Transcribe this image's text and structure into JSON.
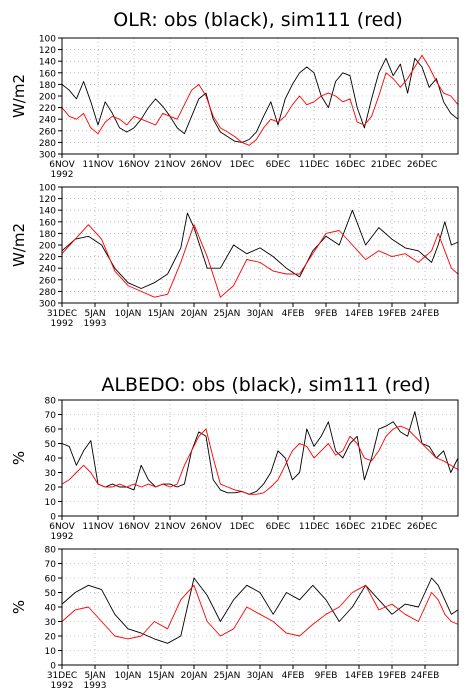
{
  "titles": {
    "olr": "OLR: obs (black), sim111 (red)",
    "albedo": "ALBEDO: obs (black), sim111 (red)"
  },
  "colors": {
    "obs": "#000000",
    "sim": "#ff0000",
    "grid": "#999999"
  },
  "chart_data": [
    {
      "type": "line",
      "panel_id": "olr-1",
      "ylabel": "W/m2",
      "ylim": [
        300,
        100
      ],
      "y_inverted": true,
      "yticks": [
        "100",
        "120",
        "140",
        "160",
        "180",
        "200",
        "220",
        "240",
        "260",
        "280",
        "300"
      ],
      "xlim": [
        0,
        55
      ],
      "xticks": [
        {
          "x": 0,
          "l1": "6NOV",
          "l2": "1992"
        },
        {
          "x": 5,
          "l1": "11NOV",
          "l2": ""
        },
        {
          "x": 10,
          "l1": "16NOV",
          "l2": ""
        },
        {
          "x": 15,
          "l1": "21NOV",
          "l2": ""
        },
        {
          "x": 20,
          "l1": "26NOV",
          "l2": ""
        },
        {
          "x": 25,
          "l1": "1DEC",
          "l2": ""
        },
        {
          "x": 30,
          "l1": "6DEC",
          "l2": ""
        },
        {
          "x": 35,
          "l1": "11DEC",
          "l2": ""
        },
        {
          "x": 40,
          "l1": "16DEC",
          "l2": ""
        },
        {
          "x": 45,
          "l1": "21DEC",
          "l2": ""
        },
        {
          "x": 50,
          "l1": "26DEC",
          "l2": ""
        }
      ],
      "grid": true,
      "series": [
        {
          "name": "obs",
          "color": "#000000",
          "x": [
            0,
            1,
            2,
            3,
            4,
            5,
            6,
            7,
            8,
            9,
            10,
            11,
            12,
            13,
            14,
            15,
            16,
            17,
            18,
            19,
            20,
            21,
            22,
            23,
            24,
            25,
            26,
            27,
            28,
            29,
            30,
            31,
            32,
            33,
            34,
            35,
            36,
            37,
            38,
            39,
            40,
            41,
            42,
            43,
            44,
            45,
            46,
            47,
            48,
            49,
            50,
            51,
            52,
            53,
            54,
            55
          ],
          "y": [
            180,
            190,
            205,
            175,
            210,
            250,
            210,
            230,
            255,
            262,
            255,
            240,
            220,
            205,
            218,
            235,
            255,
            265,
            235,
            205,
            195,
            240,
            262,
            270,
            278,
            280,
            275,
            262,
            235,
            210,
            250,
            205,
            180,
            160,
            150,
            160,
            200,
            220,
            175,
            160,
            165,
            220,
            255,
            205,
            160,
            135,
            165,
            145,
            195,
            135,
            150,
            185,
            170,
            210,
            230,
            240
          ]
        },
        {
          "name": "sim111",
          "color": "#ff0000",
          "x": [
            0,
            1,
            2,
            3,
            4,
            5,
            6,
            7,
            8,
            9,
            10,
            11,
            12,
            13,
            14,
            15,
            16,
            17,
            18,
            19,
            20,
            21,
            22,
            23,
            24,
            25,
            26,
            27,
            28,
            29,
            30,
            31,
            32,
            33,
            34,
            35,
            36,
            37,
            38,
            39,
            40,
            41,
            42,
            43,
            44,
            45,
            46,
            47,
            48,
            49,
            50,
            51,
            52,
            53,
            54,
            55
          ],
          "y": [
            220,
            235,
            240,
            230,
            255,
            265,
            245,
            235,
            240,
            250,
            235,
            240,
            245,
            250,
            230,
            235,
            240,
            215,
            190,
            180,
            200,
            235,
            255,
            262,
            270,
            280,
            285,
            275,
            255,
            240,
            245,
            235,
            215,
            200,
            215,
            210,
            200,
            195,
            200,
            210,
            205,
            245,
            250,
            235,
            200,
            160,
            170,
            185,
            170,
            150,
            130,
            150,
            175,
            195,
            200,
            215
          ]
        }
      ]
    },
    {
      "type": "line",
      "panel_id": "olr-2",
      "ylabel": "W/m2",
      "ylim": [
        300,
        100
      ],
      "y_inverted": true,
      "yticks": [
        "100",
        "120",
        "140",
        "160",
        "180",
        "200",
        "220",
        "240",
        "260",
        "280",
        "300"
      ],
      "xlim": [
        0,
        60
      ],
      "xticks": [
        {
          "x": 0,
          "l1": "31DEC",
          "l2": "1992"
        },
        {
          "x": 5,
          "l1": "5JAN",
          "l2": "1993"
        },
        {
          "x": 10,
          "l1": "10JAN",
          "l2": ""
        },
        {
          "x": 15,
          "l1": "15JAN",
          "l2": ""
        },
        {
          "x": 20,
          "l1": "20JAN",
          "l2": ""
        },
        {
          "x": 25,
          "l1": "25JAN",
          "l2": ""
        },
        {
          "x": 30,
          "l1": "30JAN",
          "l2": ""
        },
        {
          "x": 35,
          "l1": "4FEB",
          "l2": ""
        },
        {
          "x": 40,
          "l1": "9FEB",
          "l2": ""
        },
        {
          "x": 45,
          "l1": "14FEB",
          "l2": ""
        },
        {
          "x": 50,
          "l1": "19FEB",
          "l2": ""
        },
        {
          "x": 55,
          "l1": "24FEB",
          "l2": ""
        }
      ],
      "grid": true,
      "series": [
        {
          "name": "obs",
          "color": "#000000",
          "x": [
            0,
            2,
            4,
            6,
            8,
            10,
            12,
            14,
            16,
            18,
            19,
            20,
            22,
            24,
            26,
            28,
            30,
            32,
            34,
            36,
            38,
            40,
            42,
            44,
            46,
            48,
            50,
            52,
            54,
            56,
            57,
            58,
            59,
            60
          ],
          "y": [
            210,
            190,
            185,
            200,
            240,
            265,
            275,
            265,
            250,
            205,
            145,
            170,
            240,
            240,
            200,
            215,
            205,
            220,
            240,
            255,
            210,
            185,
            200,
            140,
            200,
            170,
            190,
            205,
            210,
            230,
            200,
            160,
            200,
            195
          ]
        },
        {
          "name": "sim111",
          "color": "#ff0000",
          "x": [
            0,
            2,
            4,
            6,
            8,
            10,
            12,
            14,
            16,
            18,
            20,
            22,
            24,
            26,
            28,
            30,
            32,
            34,
            36,
            38,
            40,
            42,
            44,
            46,
            48,
            50,
            52,
            54,
            56,
            57,
            58,
            59,
            60
          ],
          "y": [
            215,
            190,
            165,
            190,
            245,
            270,
            280,
            290,
            285,
            230,
            165,
            220,
            290,
            270,
            225,
            230,
            245,
            250,
            250,
            215,
            180,
            175,
            200,
            225,
            210,
            220,
            215,
            230,
            210,
            180,
            210,
            240,
            250
          ]
        }
      ]
    },
    {
      "type": "line",
      "panel_id": "albedo-1",
      "ylabel": "%",
      "ylim": [
        0,
        80
      ],
      "yticks": [
        "0",
        "10",
        "20",
        "30",
        "40",
        "50",
        "60",
        "70",
        "80"
      ],
      "xlim": [
        0,
        55
      ],
      "xticks": [
        {
          "x": 0,
          "l1": "6NOV",
          "l2": "1992"
        },
        {
          "x": 5,
          "l1": "11NOV",
          "l2": ""
        },
        {
          "x": 10,
          "l1": "16NOV",
          "l2": ""
        },
        {
          "x": 15,
          "l1": "21NOV",
          "l2": ""
        },
        {
          "x": 20,
          "l1": "26NOV",
          "l2": ""
        },
        {
          "x": 25,
          "l1": "1DEC",
          "l2": ""
        },
        {
          "x": 30,
          "l1": "6DEC",
          "l2": ""
        },
        {
          "x": 35,
          "l1": "11DEC",
          "l2": ""
        },
        {
          "x": 40,
          "l1": "16DEC",
          "l2": ""
        },
        {
          "x": 45,
          "l1": "21DEC",
          "l2": ""
        },
        {
          "x": 50,
          "l1": "26DEC",
          "l2": ""
        }
      ],
      "grid": true,
      "series": [
        {
          "name": "obs",
          "color": "#000000",
          "x": [
            0,
            1,
            2,
            3,
            4,
            5,
            6,
            7,
            8,
            9,
            10,
            11,
            12,
            13,
            14,
            15,
            16,
            17,
            18,
            19,
            20,
            21,
            22,
            23,
            24,
            25,
            26,
            27,
            28,
            29,
            30,
            31,
            32,
            33,
            34,
            35,
            36,
            37,
            38,
            39,
            40,
            41,
            42,
            43,
            44,
            45,
            46,
            47,
            48,
            49,
            50,
            51,
            52,
            53,
            54,
            55
          ],
          "y": [
            50,
            48,
            35,
            45,
            52,
            22,
            20,
            22,
            20,
            20,
            18,
            35,
            25,
            20,
            22,
            22,
            20,
            22,
            45,
            58,
            55,
            25,
            18,
            16,
            16,
            17,
            15,
            17,
            22,
            30,
            45,
            40,
            25,
            30,
            60,
            48,
            55,
            65,
            45,
            40,
            50,
            55,
            25,
            40,
            60,
            62,
            65,
            58,
            55,
            72,
            50,
            48,
            40,
            45,
            30,
            40
          ]
        },
        {
          "name": "sim111",
          "color": "#ff0000",
          "x": [
            0,
            1,
            2,
            3,
            4,
            5,
            6,
            7,
            8,
            9,
            10,
            11,
            12,
            13,
            14,
            15,
            16,
            17,
            18,
            19,
            20,
            21,
            22,
            23,
            24,
            25,
            26,
            27,
            28,
            29,
            30,
            31,
            32,
            33,
            34,
            35,
            36,
            37,
            38,
            39,
            40,
            41,
            42,
            43,
            44,
            45,
            46,
            47,
            48,
            49,
            50,
            51,
            52,
            53,
            54,
            55
          ],
          "y": [
            22,
            25,
            30,
            35,
            30,
            22,
            20,
            20,
            22,
            20,
            22,
            20,
            22,
            20,
            22,
            20,
            22,
            35,
            45,
            55,
            60,
            40,
            22,
            20,
            18,
            17,
            15,
            15,
            16,
            20,
            25,
            35,
            45,
            50,
            48,
            40,
            45,
            50,
            42,
            45,
            55,
            50,
            40,
            38,
            45,
            55,
            60,
            62,
            60,
            55,
            50,
            45,
            40,
            38,
            35,
            32
          ]
        }
      ]
    },
    {
      "type": "line",
      "panel_id": "albedo-2",
      "ylabel": "%",
      "ylim": [
        0,
        80
      ],
      "yticks": [
        "0",
        "10",
        "20",
        "30",
        "40",
        "50",
        "60",
        "70",
        "80"
      ],
      "xlim": [
        0,
        60
      ],
      "xticks": [
        {
          "x": 0,
          "l1": "31DEC",
          "l2": "1992"
        },
        {
          "x": 5,
          "l1": "5JAN",
          "l2": "1993"
        },
        {
          "x": 10,
          "l1": "10JAN",
          "l2": ""
        },
        {
          "x": 15,
          "l1": "15JAN",
          "l2": ""
        },
        {
          "x": 20,
          "l1": "20JAN",
          "l2": ""
        },
        {
          "x": 25,
          "l1": "25JAN",
          "l2": ""
        },
        {
          "x": 30,
          "l1": "30JAN",
          "l2": ""
        },
        {
          "x": 35,
          "l1": "4FEB",
          "l2": ""
        },
        {
          "x": 40,
          "l1": "9FEB",
          "l2": ""
        },
        {
          "x": 45,
          "l1": "14FEB",
          "l2": ""
        },
        {
          "x": 50,
          "l1": "19FEB",
          "l2": ""
        },
        {
          "x": 55,
          "l1": "24FEB",
          "l2": ""
        }
      ],
      "grid": true,
      "series": [
        {
          "name": "obs",
          "color": "#000000",
          "x": [
            0,
            2,
            4,
            6,
            8,
            10,
            12,
            14,
            16,
            18,
            20,
            22,
            24,
            26,
            28,
            30,
            32,
            34,
            36,
            38,
            40,
            42,
            44,
            46,
            48,
            50,
            52,
            54,
            56,
            57,
            58,
            59,
            60
          ],
          "y": [
            42,
            50,
            55,
            52,
            35,
            25,
            22,
            18,
            15,
            20,
            60,
            48,
            30,
            45,
            55,
            50,
            35,
            50,
            45,
            55,
            45,
            30,
            40,
            55,
            45,
            35,
            42,
            40,
            60,
            55,
            45,
            35,
            38
          ]
        },
        {
          "name": "sim111",
          "color": "#ff0000",
          "x": [
            0,
            2,
            4,
            6,
            8,
            10,
            12,
            14,
            16,
            18,
            20,
            22,
            24,
            26,
            28,
            30,
            32,
            34,
            36,
            38,
            40,
            42,
            44,
            46,
            48,
            50,
            52,
            54,
            56,
            57,
            58,
            59,
            60
          ],
          "y": [
            30,
            38,
            40,
            30,
            20,
            18,
            20,
            30,
            25,
            45,
            55,
            30,
            20,
            25,
            40,
            35,
            30,
            22,
            20,
            28,
            35,
            40,
            50,
            55,
            38,
            42,
            35,
            30,
            50,
            45,
            35,
            30,
            28
          ]
        }
      ]
    }
  ]
}
